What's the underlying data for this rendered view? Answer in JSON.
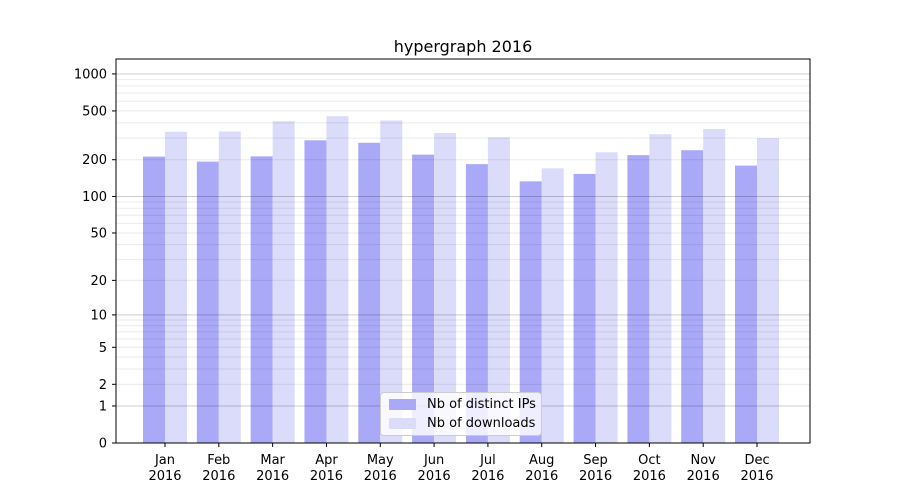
{
  "chart_data": {
    "type": "bar",
    "title": "hypergraph 2016",
    "categories": [
      "Jan",
      "Feb",
      "Mar",
      "Apr",
      "May",
      "Jun",
      "Jul",
      "Aug",
      "Sep",
      "Oct",
      "Nov",
      "Dec"
    ],
    "category_year": "2016",
    "series": [
      {
        "name": "Nb of distinct IPs",
        "color": "#a9a9f7",
        "values": [
          212,
          193,
          213,
          288,
          275,
          220,
          184,
          133,
          153,
          218,
          239,
          179
        ]
      },
      {
        "name": "Nb of downloads",
        "color": "#dbdbfa",
        "values": [
          338,
          340,
          411,
          453,
          418,
          330,
          305,
          170,
          230,
          323,
          356,
          300
        ]
      }
    ],
    "xlabel": "",
    "ylabel": "",
    "y_scale": "log1p",
    "ylim": [
      0,
      1300
    ],
    "y_ticks": [
      0,
      1,
      2,
      5,
      10,
      20,
      50,
      100,
      200,
      500,
      1000
    ],
    "y_minor_gridlines": [
      2,
      3,
      4,
      5,
      6,
      7,
      8,
      9,
      20,
      30,
      40,
      50,
      60,
      70,
      80,
      90,
      200,
      300,
      400,
      500,
      600,
      700,
      800,
      900
    ],
    "y_major_gridlines": [
      1,
      10,
      100,
      1000
    ],
    "grid": "on",
    "legend_position": "lower center",
    "colors": {
      "grid_minor": "rgba(0,0,0,0.08)",
      "grid_major": "rgba(0,0,0,0.20)",
      "axis": "#000000",
      "background": "#ffffff"
    }
  }
}
